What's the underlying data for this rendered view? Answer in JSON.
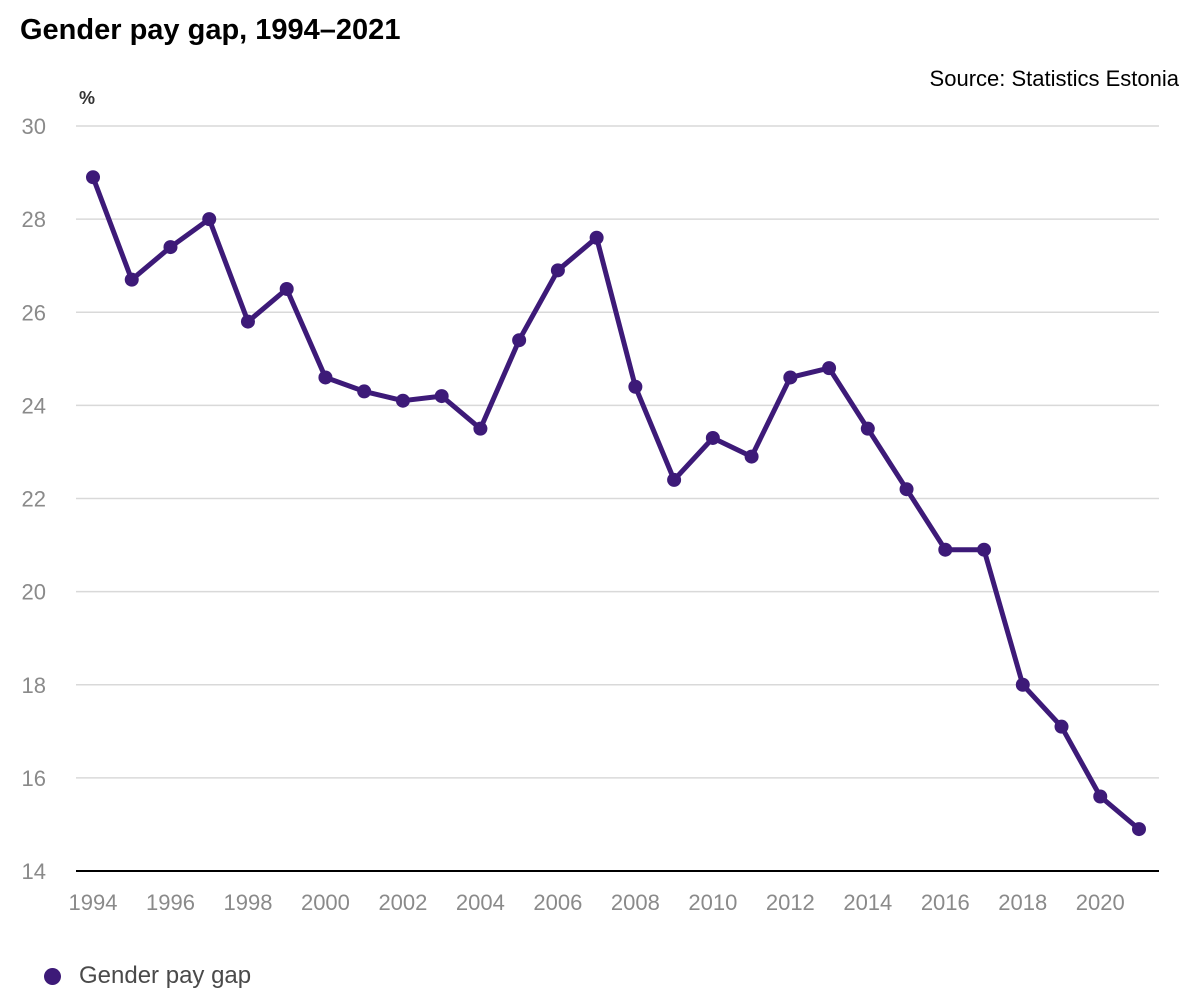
{
  "chart_data": {
    "type": "line",
    "title": "Gender pay gap, 1994–2021",
    "source": "Source: Statistics Estonia",
    "ylabel": "%",
    "xlabel": "",
    "x": [
      1994,
      1995,
      1996,
      1997,
      1998,
      1999,
      2000,
      2001,
      2002,
      2003,
      2004,
      2005,
      2006,
      2007,
      2008,
      2009,
      2010,
      2011,
      2012,
      2013,
      2014,
      2015,
      2016,
      2017,
      2018,
      2019,
      2020,
      2021
    ],
    "series": [
      {
        "name": "Gender pay gap",
        "color": "#3d1a78",
        "values": [
          28.9,
          26.7,
          27.4,
          28.0,
          25.8,
          26.5,
          24.6,
          24.3,
          24.1,
          24.2,
          23.5,
          25.4,
          26.9,
          27.6,
          24.4,
          22.4,
          23.3,
          22.9,
          24.6,
          24.8,
          23.5,
          22.2,
          20.9,
          20.9,
          18.0,
          17.1,
          15.6,
          14.9
        ]
      }
    ],
    "ylim": [
      14,
      30
    ],
    "yticks": [
      14,
      16,
      18,
      20,
      22,
      24,
      26,
      28,
      30
    ],
    "xlim": [
      1994,
      2021
    ],
    "xticks": [
      1994,
      1996,
      1998,
      2000,
      2002,
      2004,
      2006,
      2008,
      2010,
      2012,
      2014,
      2016,
      2018,
      2020
    ],
    "grid": true,
    "legend": "bottom-left"
  }
}
